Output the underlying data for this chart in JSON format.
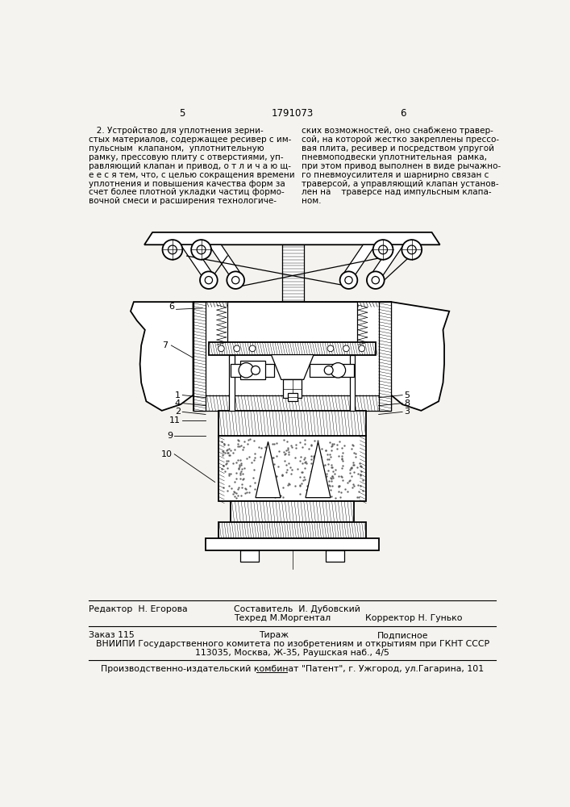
{
  "bg_color": "#f5f3ef",
  "page_num_left": "5",
  "page_num_center": "1791073",
  "page_num_right": "6",
  "left_col_text": [
    "   2. Устройство для уплотнения зерни-",
    "стых материалов, содержащее ресивер с им-",
    "пульсным  клапаном,  уплотнительную",
    "рамку, прессовую плиту с отверстиями, уп-",
    "равляющий клапан и привод, о т л и ч а ю щ-",
    "е е с я тем, что, с целью сокращения времени",
    "уплотнения и повышения качества форм за",
    "счет более плотной укладки частиц формо-",
    "вочной смеси и расширения технологиче-"
  ],
  "right_col_text": [
    "ских возможностей, оно снабжено травер-",
    "сой, на которой жестко закреплены прессо-",
    "вая плита, ресивер и посредством упругой",
    "пневмоподвески уплотнительная  рамка,",
    "при этом привод выполнен в виде рычажно-",
    "го пневмоусилителя и шарнирно связан с",
    "траверсой, а управляющий клапан установ-",
    "лен на    траверсе над импульсным клапа-",
    "ном."
  ],
  "editor_line": "Редактор  Н. Егорова",
  "composer_line": "Составитель  И. Дубовский",
  "techred_line": "Техред М.Моргентал",
  "corrector_line": "Корректор Н. Гунько",
  "order_line": "Заказ 115",
  "tiraж_line": "Тираж",
  "podpisnoe_line": "Подписное",
  "vniiipi_line": "ВНИИПИ Государственного комитета по изобретениям и открытиям при ГКНТ СССР",
  "address_line": "113035, Москва, Ж-35, Раушская наб., 4/5",
  "publisher_line": "Производственно-издательский комбинат \"Патент\", г. Ужгород, ул.Гагарина, 101"
}
